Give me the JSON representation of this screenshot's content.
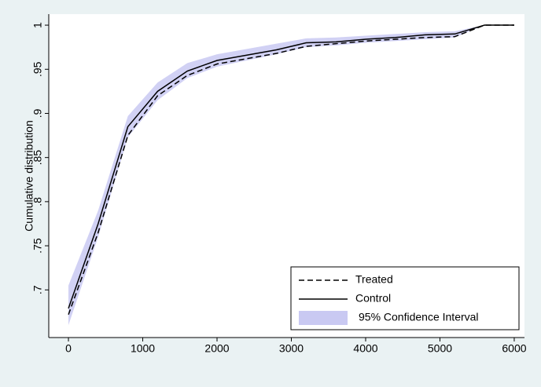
{
  "chart_data": {
    "type": "line",
    "y_label": "Cumulative distribution",
    "x": [
      0,
      400,
      800,
      1200,
      1600,
      2000,
      2400,
      2800,
      3200,
      3600,
      4000,
      4400,
      4800,
      5200,
      5600,
      6000
    ],
    "series": [
      {
        "name": "Treated",
        "color": "#000000",
        "linestyle": "dashed",
        "values": [
          0.672,
          0.765,
          0.875,
          0.92,
          0.943,
          0.956,
          0.962,
          0.968,
          0.976,
          0.979,
          0.982,
          0.984,
          0.986,
          0.987,
          1,
          1
        ]
      },
      {
        "name": "Control",
        "color": "#000000",
        "linestyle": "solid",
        "values": [
          0.679,
          0.775,
          0.885,
          0.925,
          0.948,
          0.96,
          0.966,
          0.972,
          0.98,
          0.981,
          0.984,
          0.986,
          0.989,
          0.99,
          1,
          1
        ]
      }
    ],
    "band": {
      "name": "95% Confidence Interval",
      "color": "#c9c9f2",
      "lower": [
        0.66,
        0.76,
        0.873,
        0.915,
        0.94,
        0.953,
        0.96,
        0.967,
        0.975,
        0.977,
        0.98,
        0.982,
        0.984,
        0.986,
        1,
        1
      ],
      "upper": [
        0.705,
        0.79,
        0.897,
        0.935,
        0.957,
        0.967,
        0.973,
        0.979,
        0.985,
        0.986,
        0.988,
        0.99,
        0.992,
        0.993,
        1,
        1
      ]
    },
    "xlim": [
      -265,
      6138
    ],
    "ylim": [
      0.646,
      1.0125
    ],
    "xticks": [
      0,
      1000,
      2000,
      3000,
      4000,
      5000,
      6000
    ],
    "yticks": [
      {
        "value": 0.7,
        "label": ".7"
      },
      {
        "value": 0.75,
        "label": ".75"
      },
      {
        "value": 0.8,
        "label": ".8"
      },
      {
        "value": 0.85,
        "label": ".85"
      },
      {
        "value": 0.9,
        "label": ".9"
      },
      {
        "value": 0.95,
        "label": ".95"
      },
      1
    ],
    "legend": "lower right"
  }
}
